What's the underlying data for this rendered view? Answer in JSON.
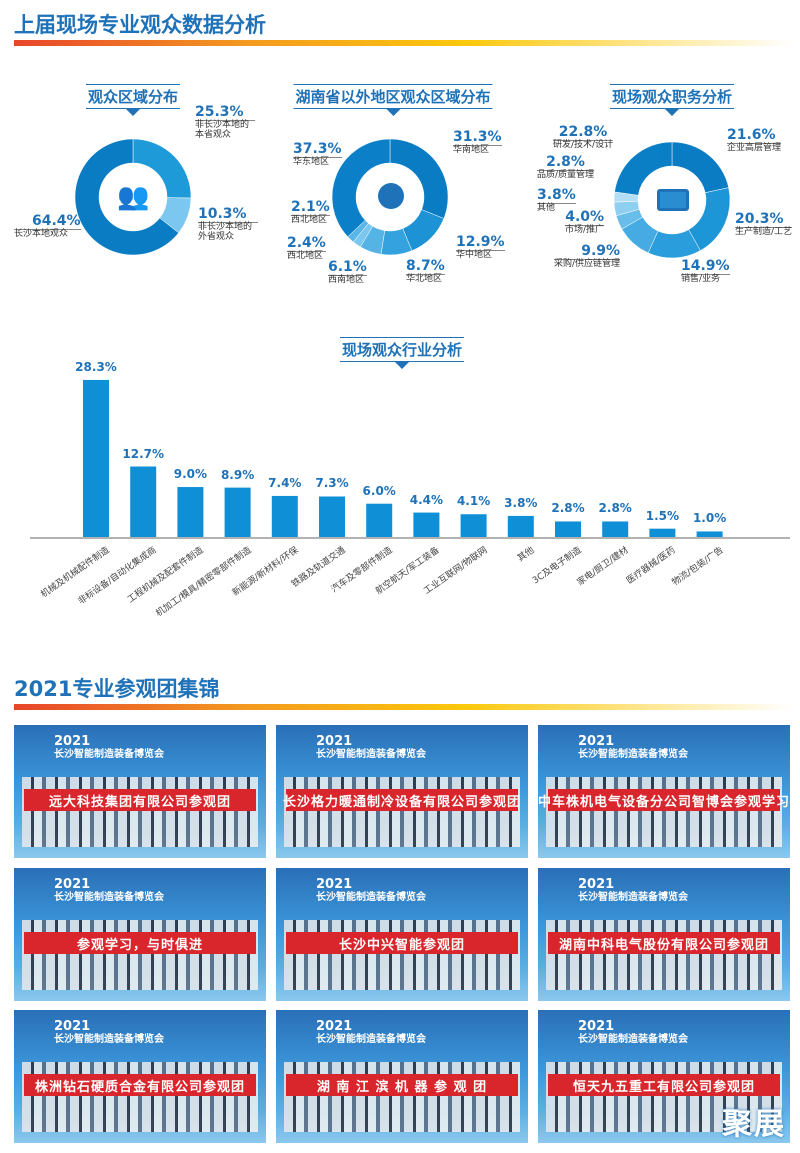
{
  "section1": {
    "title": "上届现场专业观众数据分析"
  },
  "section2": {
    "title": "2021专业参观团集锦"
  },
  "colors": {
    "dark": "#0a7cc4",
    "mid": "#1f97d8",
    "light": "#5bb6e8",
    "lighter": "#8fd0f2",
    "title": "#1f72b8"
  },
  "chart_data": [
    {
      "type": "pie",
      "title": "观众区域分布",
      "icon": "people-group-icon",
      "slices": [
        {
          "label": "非长沙本地的本省观众",
          "value": 25.3,
          "pct": "25.3%",
          "color": "#1f9ad9"
        },
        {
          "label": "非长沙本地的外省观众",
          "value": 10.3,
          "pct": "10.3%",
          "color": "#7cc7ef"
        },
        {
          "label": "长沙本地观众",
          "value": 64.4,
          "pct": "64.4%",
          "color": "#0a7cc4"
        }
      ]
    },
    {
      "type": "pie",
      "title": "湖南省以外地区观众区域分布",
      "icon": "globe-icon",
      "slices": [
        {
          "label": "华南地区",
          "value": 31.3,
          "pct": "31.3%",
          "color": "#0a7cc4"
        },
        {
          "label": "华中地区",
          "value": 12.9,
          "pct": "12.9%",
          "color": "#1d93d6"
        },
        {
          "label": "华北地区",
          "value": 8.7,
          "pct": "8.7%",
          "color": "#33a2de"
        },
        {
          "label": "西南地区",
          "value": 6.1,
          "pct": "6.1%",
          "color": "#55b3e6"
        },
        {
          "label": "西北地区",
          "value": 2.4,
          "pct": "2.4%",
          "color": "#7cc7ef"
        },
        {
          "label": "西北地区",
          "value": 2.1,
          "pct": "2.1%",
          "color": "#5bb6e8"
        },
        {
          "label": "华东地区",
          "value": 37.3,
          "pct": "37.3%",
          "color": "#0b80c8"
        }
      ]
    },
    {
      "type": "pie",
      "title": "现场观众职务分析",
      "icon": "briefcase-icon",
      "slices": [
        {
          "label": "企业高层管理",
          "value": 21.6,
          "pct": "21.6%",
          "color": "#0a7cc4"
        },
        {
          "label": "生产制造/工艺",
          "value": 20.3,
          "pct": "20.3%",
          "color": "#1d96d8"
        },
        {
          "label": "销售/业务",
          "value": 14.9,
          "pct": "14.9%",
          "color": "#2a9edc"
        },
        {
          "label": "采购/供应链管理",
          "value": 9.9,
          "pct": "9.9%",
          "color": "#45abe2"
        },
        {
          "label": "市场/推广",
          "value": 4.0,
          "pct": "4.0%",
          "color": "#68bde9"
        },
        {
          "label": "其他",
          "value": 3.8,
          "pct": "3.8%",
          "color": "#8fd0f2"
        },
        {
          "label": "品质/质量管理",
          "value": 2.8,
          "pct": "2.8%",
          "color": "#b4e0f7"
        },
        {
          "label": "研发/技术/设计",
          "value": 22.8,
          "pct": "22.8%",
          "color": "#0b7fc6"
        }
      ]
    },
    {
      "type": "bar",
      "title": "现场观众行业分析",
      "ylim": [
        0,
        30
      ],
      "categories": [
        "机械及机械配件制造",
        "非标设备/自动化集成商",
        "工程机械及配套件制造",
        "机加工/模具/精密零部件制造",
        "新能源/新材料/环保",
        "铁路及轨道交通",
        "汽车及零部件制造",
        "航空航天/军工装备",
        "工业互联网/物联网",
        "其他",
        "3C及电子制造",
        "家电/厨卫/建材",
        "医疗器械/医药",
        "物流/包装/广告"
      ],
      "values": [
        28.3,
        12.7,
        9.0,
        8.9,
        7.4,
        7.3,
        6.0,
        4.4,
        4.1,
        3.8,
        2.8,
        2.8,
        1.5,
        1.0
      ],
      "labels": [
        "28.3%",
        "12.7%",
        "9.0%",
        "8.9%",
        "7.4%",
        "7.3%",
        "6.0%",
        "4.4%",
        "4.1%",
        "3.8%",
        "2.8%",
        "2.8%",
        "1.5%",
        "1.0%"
      ],
      "color": "#0e8fd6"
    }
  ],
  "expo": {
    "year": "2021",
    "name": "长沙智能制造装备博览会"
  },
  "photos": [
    {
      "banner": "远大科技集团有限公司参观团"
    },
    {
      "banner": "长沙格力暖通制冷设备有限公司参观团"
    },
    {
      "banner": "中车株机电气设备分公司智博会参观学习"
    },
    {
      "banner": "参观学习，与时俱进"
    },
    {
      "banner": "长沙中兴智能参观团"
    },
    {
      "banner": "湖南中科电气股份有限公司参观团"
    },
    {
      "banner": "株洲钻石硬质合金有限公司参观团"
    },
    {
      "banner": "湖 南 江 滨 机 器 参 观 团"
    },
    {
      "banner": "恒天九五重工有限公司参观团"
    }
  ],
  "logo": "聚展"
}
